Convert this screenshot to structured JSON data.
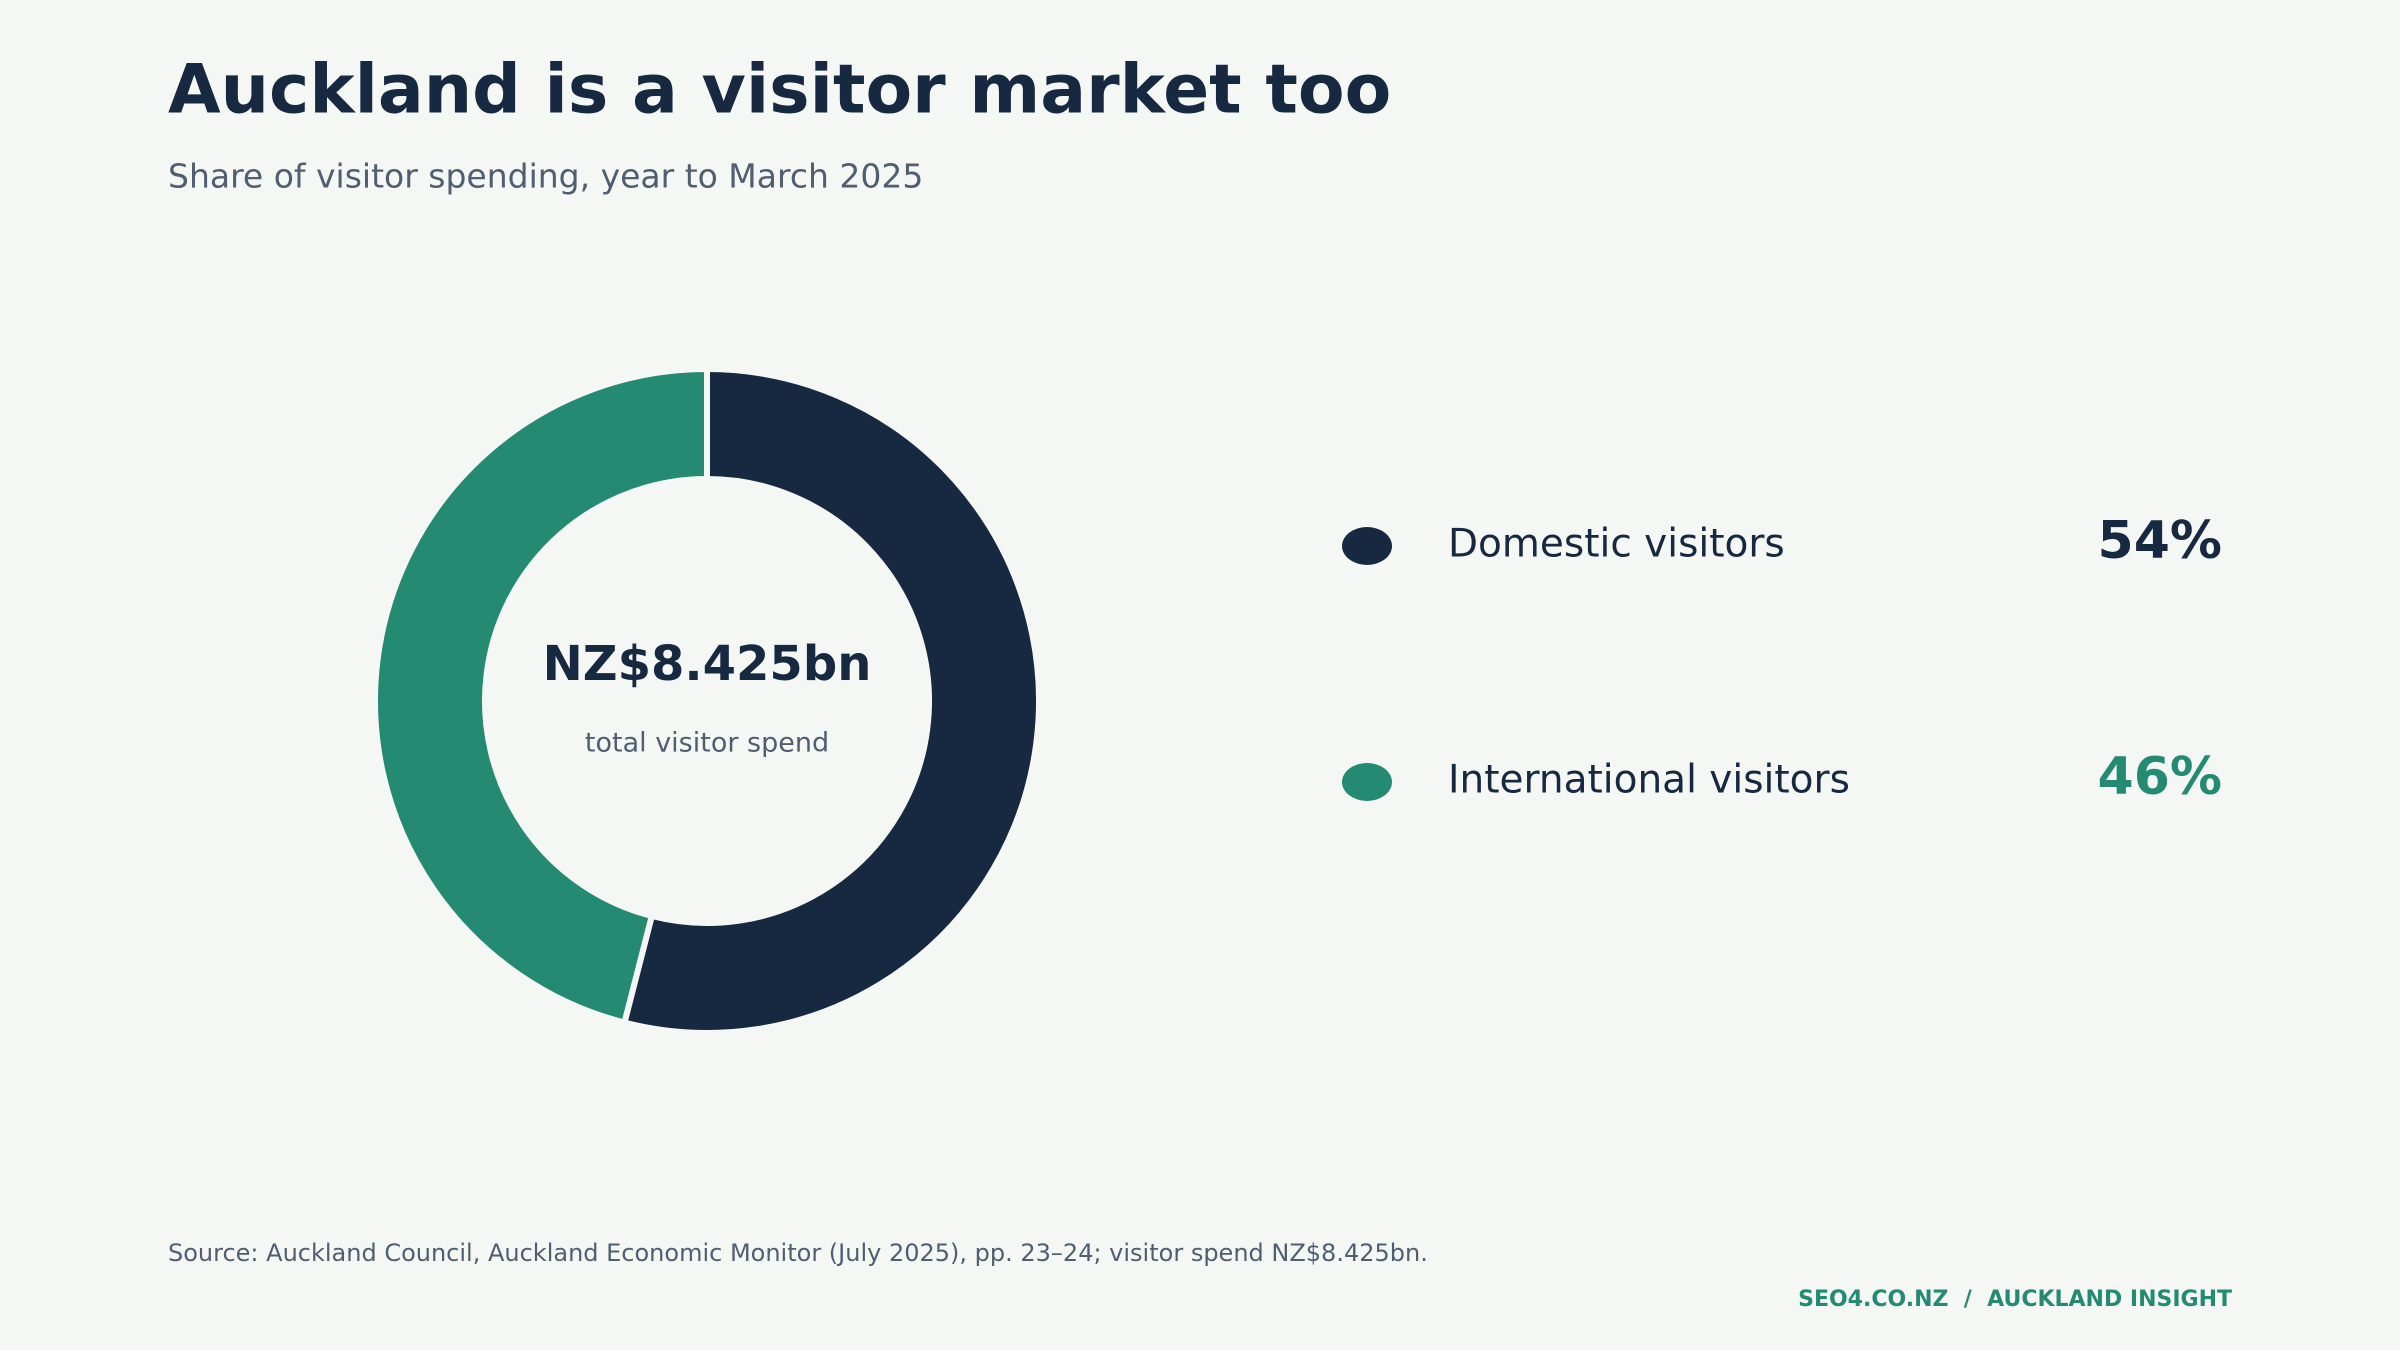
{
  "chart_data": {
    "type": "pie",
    "donut": true,
    "title": "Auckland is a visitor market too",
    "subtitle": "Share of visitor spending, year to March 2025",
    "categories": [
      "Domestic visitors",
      "International visitors"
    ],
    "values": [
      54,
      46
    ],
    "value_labels": [
      "54%",
      "46%"
    ],
    "colors": [
      "#172841",
      "#248a72"
    ],
    "center_value": "NZ$8.425bn",
    "center_label": "total visitor spend",
    "source": "Source: Auckland Council, Auckland Economic Monitor (July 2025), pp. 23–24; visitor spend NZ$8.425bn.",
    "brand": "SEO4.CO.NZ  /  AUCKLAND INSIGHT"
  }
}
